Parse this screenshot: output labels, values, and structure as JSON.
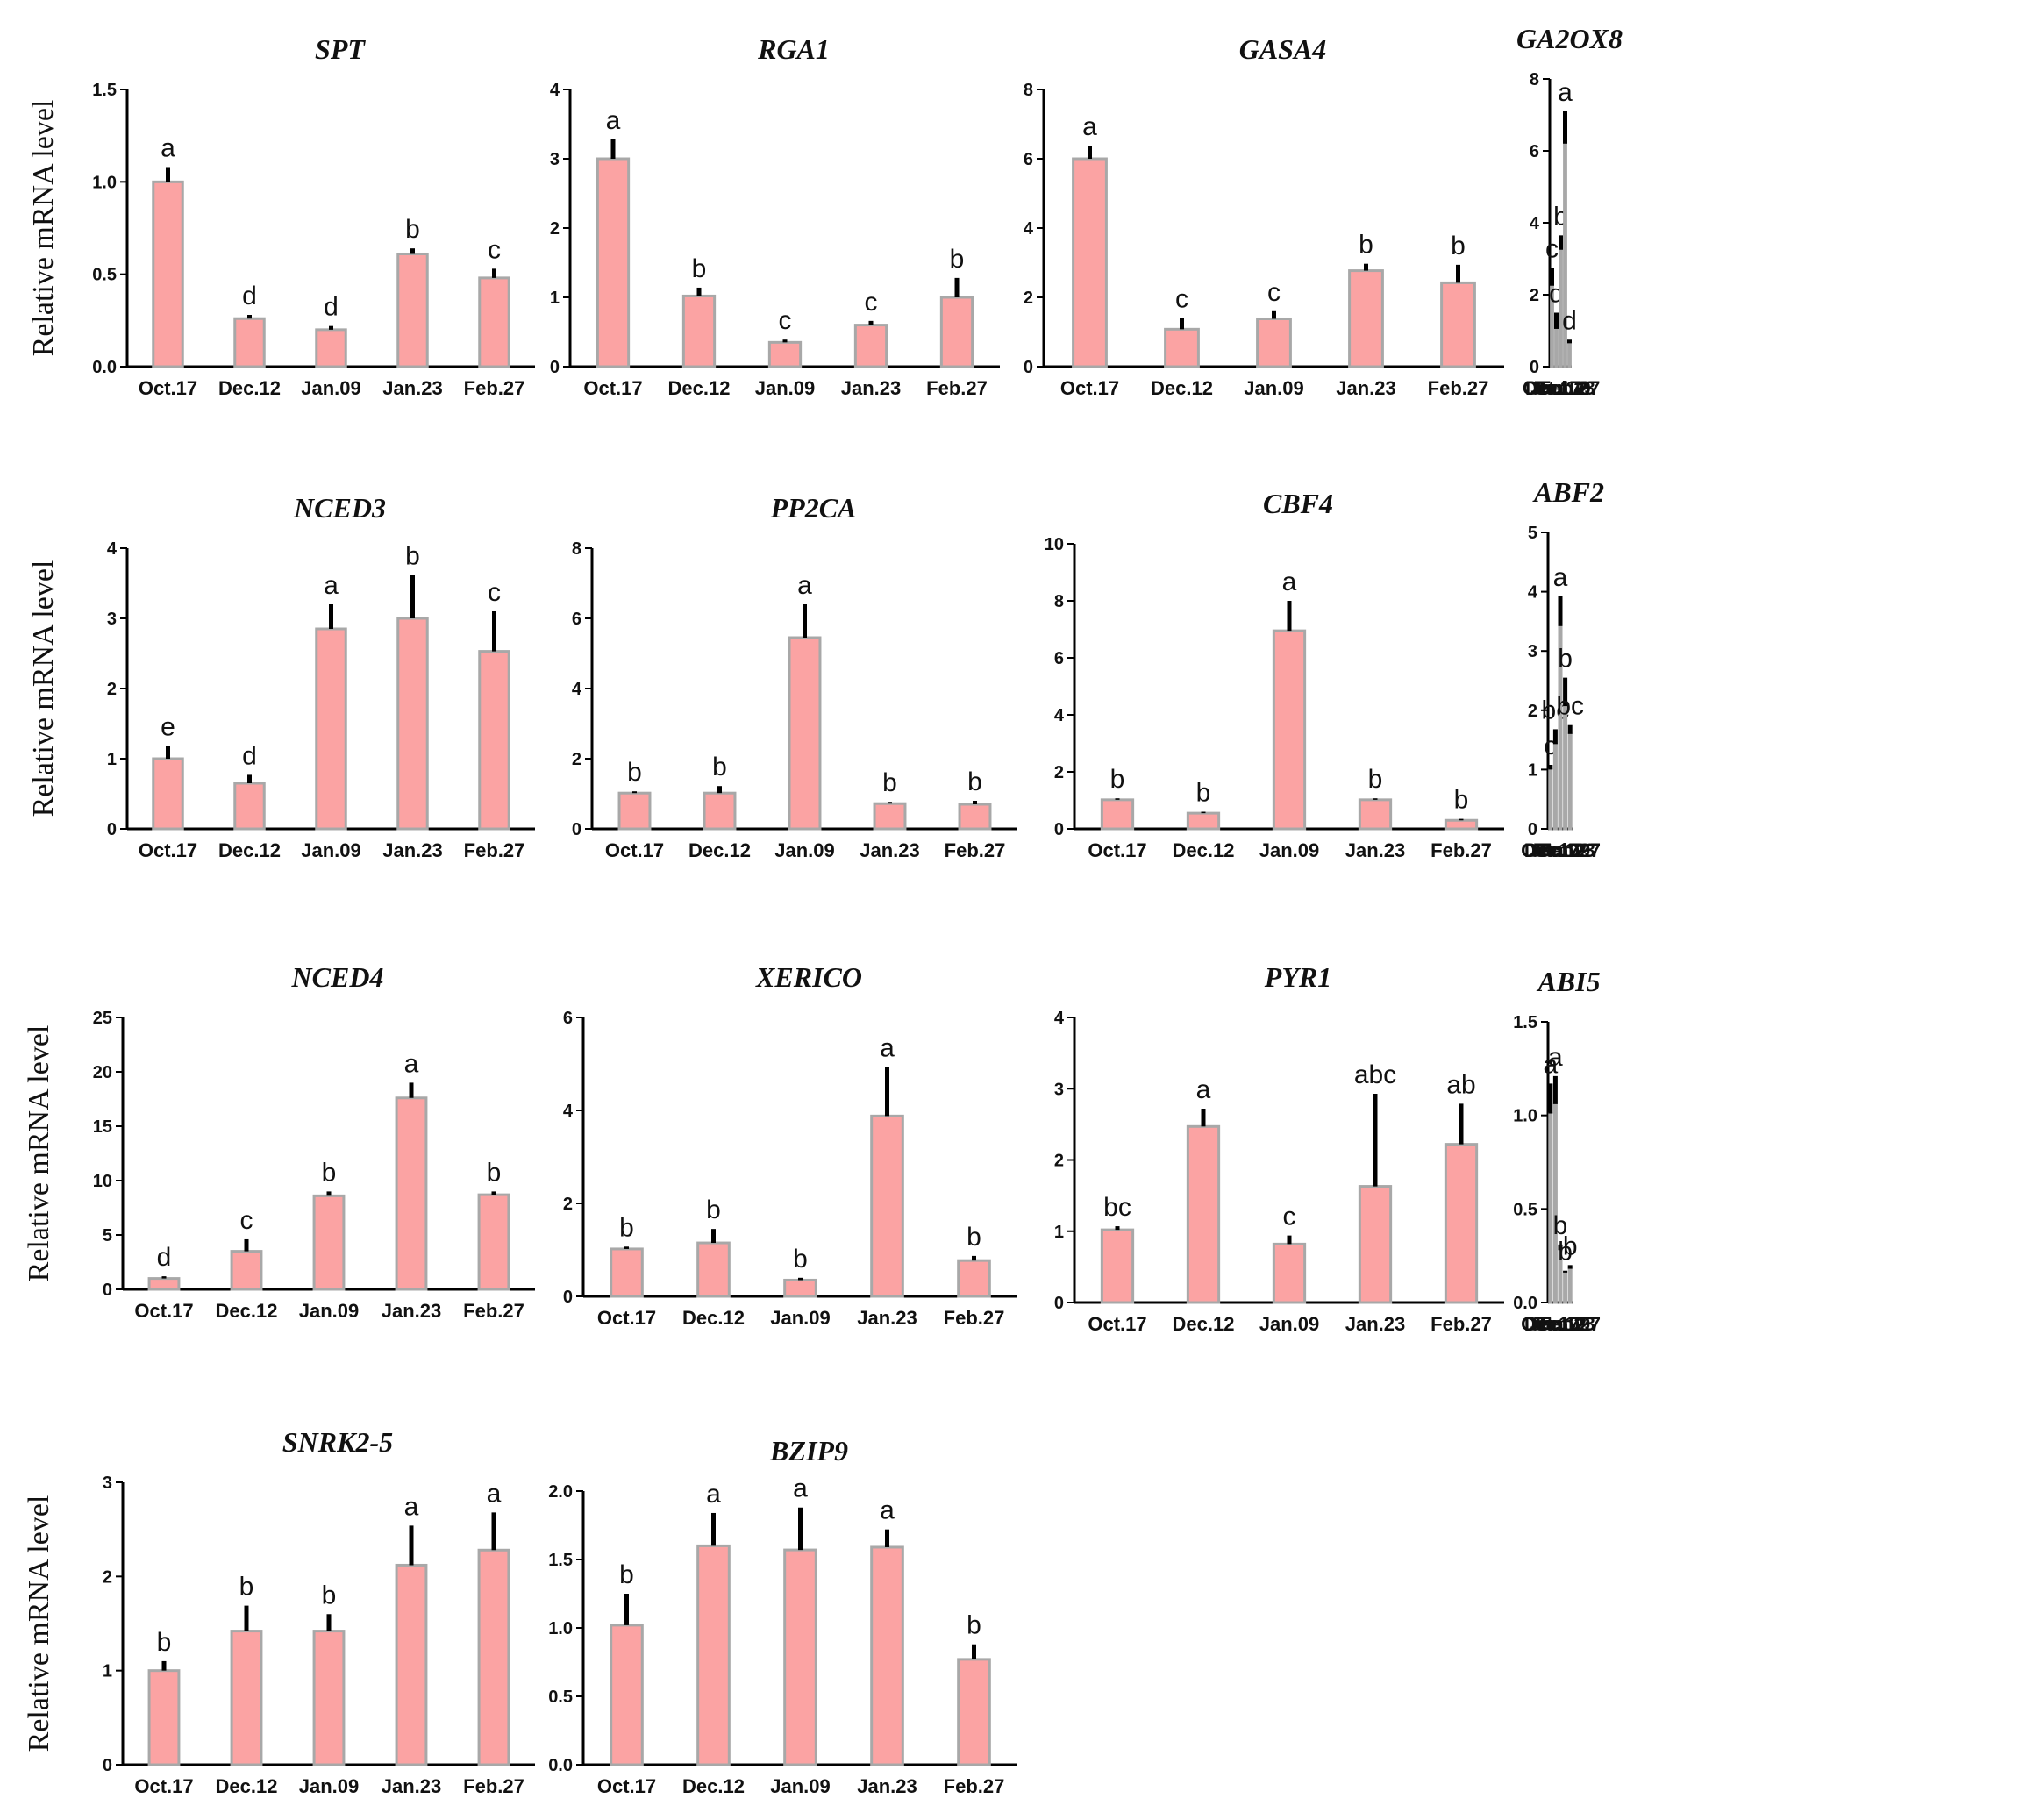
{
  "figure": {
    "bar_color": "#fba3a3",
    "bar_edge_color": "#a8a8a8",
    "axis_color": "#000000"
  },
  "chart_data": [
    {
      "type": "bar",
      "title": "SPT",
      "ylabel": "Relative mRNA level",
      "categories": [
        "Oct.17",
        "Dec.12",
        "Jan.09",
        "Jan.23",
        "Feb.27"
      ],
      "values": [
        1.0,
        0.26,
        0.2,
        0.61,
        0.48
      ],
      "errors": [
        0.08,
        0.02,
        0.02,
        0.03,
        0.05
      ],
      "significance": [
        "a",
        "d",
        "d",
        "b",
        "c"
      ],
      "ylim": [
        0,
        1.5
      ],
      "yticks": [
        "0.0",
        "0.5",
        "1.0",
        "1.5"
      ]
    },
    {
      "type": "bar",
      "title": "RGA1",
      "ylabel": "",
      "categories": [
        "Oct.17",
        "Dec.12",
        "Jan.09",
        "Jan.23",
        "Feb.27"
      ],
      "values": [
        3.0,
        1.02,
        0.35,
        0.6,
        1.0
      ],
      "errors": [
        0.28,
        0.12,
        0.04,
        0.06,
        0.28
      ],
      "significance": [
        "a",
        "b",
        "c",
        "c",
        "b"
      ],
      "ylim": [
        0,
        4
      ],
      "yticks": [
        "0",
        "1",
        "2",
        "3",
        "4"
      ]
    },
    {
      "type": "bar",
      "title": "GASA4",
      "ylabel": "",
      "categories": [
        "Oct.17",
        "Dec.12",
        "Jan.09",
        "Jan.23",
        "Feb.27"
      ],
      "values": [
        6.0,
        1.08,
        1.38,
        2.77,
        2.42
      ],
      "errors": [
        0.38,
        0.33,
        0.22,
        0.2,
        0.52
      ],
      "significance": [
        "a",
        "c",
        "c",
        "b",
        "b"
      ],
      "ylim": [
        0,
        8
      ],
      "yticks": [
        "0",
        "2",
        "4",
        "6",
        "8"
      ]
    },
    {
      "type": "bar",
      "title": "GA2OX8",
      "ylabel": "",
      "categories": [
        "Oct.17",
        "Dec.12",
        "Jan.09",
        "Jan.23",
        "Feb.27"
      ],
      "values": [
        2.25,
        1.05,
        3.25,
        6.2,
        0.65
      ],
      "errors": [
        0.5,
        0.45,
        0.4,
        0.9,
        0.1
      ],
      "significance": [
        "c",
        "d",
        "b",
        "a",
        "d"
      ],
      "ylim": [
        0,
        8
      ],
      "yticks": [
        "0",
        "2",
        "4",
        "6",
        "8"
      ]
    },
    {
      "type": "bar",
      "title": "NCED3",
      "ylabel": "Relative mRNA level",
      "categories": [
        "Oct.17",
        "Dec.12",
        "Jan.09",
        "Jan.23",
        "Feb.27"
      ],
      "values": [
        1.0,
        0.65,
        2.85,
        3.0,
        2.53
      ],
      "errors": [
        0.18,
        0.12,
        0.35,
        0.62,
        0.57
      ],
      "significance": [
        "e",
        "d",
        "a",
        "b",
        "c"
      ],
      "ylim": [
        0,
        4
      ],
      "yticks": [
        "0",
        "1",
        "2",
        "3",
        "4"
      ]
    },
    {
      "type": "bar",
      "title": "PP2CA",
      "ylabel": "",
      "categories": [
        "Oct.17",
        "Dec.12",
        "Jan.09",
        "Jan.23",
        "Feb.27"
      ],
      "values": [
        1.02,
        1.02,
        5.45,
        0.72,
        0.7
      ],
      "errors": [
        0.05,
        0.2,
        0.95,
        0.05,
        0.1
      ],
      "significance": [
        "b",
        "b",
        "a",
        "b",
        "b"
      ],
      "ylim": [
        0,
        8
      ],
      "yticks": [
        "0",
        "2",
        "4",
        "6",
        "8"
      ]
    },
    {
      "type": "bar",
      "title": "CBF4",
      "ylabel": "",
      "categories": [
        "Oct.17",
        "Dec.12",
        "Jan.09",
        "Jan.23",
        "Feb.27"
      ],
      "values": [
        1.02,
        0.55,
        6.95,
        1.02,
        0.3
      ],
      "errors": [
        0.05,
        0.05,
        1.05,
        0.05,
        0.05
      ],
      "significance": [
        "b",
        "b",
        "a",
        "b",
        "b"
      ],
      "ylim": [
        0,
        10
      ],
      "yticks": [
        "0",
        "2",
        "4",
        "6",
        "8",
        "10"
      ]
    },
    {
      "type": "bar",
      "title": "ABF2",
      "ylabel": "",
      "categories": [
        "Oct.17",
        "Dec.12",
        "Jan.09",
        "Jan.23",
        "Feb.27"
      ],
      "values": [
        1.0,
        1.43,
        3.42,
        2.07,
        1.6
      ],
      "errors": [
        0.08,
        0.25,
        0.5,
        0.48,
        0.15
      ],
      "significance": [
        "c",
        "bc",
        "a",
        "b",
        "bc"
      ],
      "ylim": [
        0,
        5
      ],
      "yticks": [
        "0",
        "1",
        "2",
        "3",
        "4",
        "5"
      ]
    },
    {
      "type": "bar",
      "title": "NCED4",
      "ylabel": "Relative mRNA level",
      "categories": [
        "Oct.17",
        "Dec.12",
        "Jan.09",
        "Jan.23",
        "Feb.27"
      ],
      "values": [
        1.0,
        3.5,
        8.6,
        17.6,
        8.7
      ],
      "errors": [
        0.2,
        1.1,
        0.4,
        1.4,
        0.3
      ],
      "significance": [
        "d",
        "c",
        "b",
        "a",
        "b"
      ],
      "ylim": [
        0,
        25
      ],
      "yticks": [
        "0",
        "5",
        "10",
        "15",
        "20",
        "25"
      ]
    },
    {
      "type": "bar",
      "title": "XERICO",
      "ylabel": "",
      "categories": [
        "Oct.17",
        "Dec.12",
        "Jan.09",
        "Jan.23",
        "Feb.27"
      ],
      "values": [
        1.02,
        1.15,
        0.35,
        3.88,
        0.77
      ],
      "errors": [
        0.05,
        0.3,
        0.05,
        1.05,
        0.1
      ],
      "significance": [
        "b",
        "b",
        "b",
        "a",
        "b"
      ],
      "ylim": [
        0,
        6
      ],
      "yticks": [
        "0",
        "2",
        "4",
        "6"
      ]
    },
    {
      "type": "bar",
      "title": "PYR1",
      "ylabel": "",
      "categories": [
        "Oct.17",
        "Dec.12",
        "Jan.09",
        "Jan.23",
        "Feb.27"
      ],
      "values": [
        1.02,
        2.47,
        0.82,
        1.63,
        2.22
      ],
      "errors": [
        0.05,
        0.25,
        0.12,
        1.3,
        0.57
      ],
      "significance": [
        "bc",
        "a",
        "c",
        "abc",
        "ab"
      ],
      "ylim": [
        0,
        4
      ],
      "yticks": [
        "0",
        "1",
        "2",
        "3",
        "4"
      ]
    },
    {
      "type": "bar",
      "title": "ABI5",
      "ylabel": "",
      "categories": [
        "Oct.17",
        "Dec.12",
        "Jan.09",
        "Jan.23",
        "Feb.27"
      ],
      "values": [
        1.01,
        1.06,
        0.28,
        0.16,
        0.18
      ],
      "errors": [
        0.16,
        0.15,
        0.03,
        0.01,
        0.02
      ],
      "significance": [
        "a",
        "a",
        "b",
        "b",
        "b"
      ],
      "ylim": [
        0,
        1.5
      ],
      "yticks": [
        "0.0",
        "0.5",
        "1.0",
        "1.5"
      ]
    },
    {
      "type": "bar",
      "title": "SNRK2-5",
      "ylabel": "Relative mRNA level",
      "categories": [
        "Oct.17",
        "Dec.12",
        "Jan.09",
        "Jan.23",
        "Feb.27"
      ],
      "values": [
        1.0,
        1.42,
        1.42,
        2.12,
        2.28
      ],
      "errors": [
        0.1,
        0.27,
        0.18,
        0.42,
        0.4
      ],
      "significance": [
        "b",
        "b",
        "b",
        "a",
        "a"
      ],
      "ylim": [
        0,
        3
      ],
      "yticks": [
        "0",
        "1",
        "2",
        "3"
      ]
    },
    {
      "type": "bar",
      "title": "BZIP9",
      "ylabel": "",
      "categories": [
        "Oct.17",
        "Dec.12",
        "Jan.09",
        "Jan.23",
        "Feb.27"
      ],
      "values": [
        1.02,
        1.6,
        1.57,
        1.59,
        0.77
      ],
      "errors": [
        0.23,
        0.24,
        0.31,
        0.13,
        0.11
      ],
      "significance": [
        "b",
        "a",
        "a",
        "a",
        "b"
      ],
      "ylim": [
        0,
        2.0
      ],
      "yticks": [
        "0.0",
        "0.5",
        "1.0",
        "1.5",
        "2.0"
      ]
    }
  ]
}
